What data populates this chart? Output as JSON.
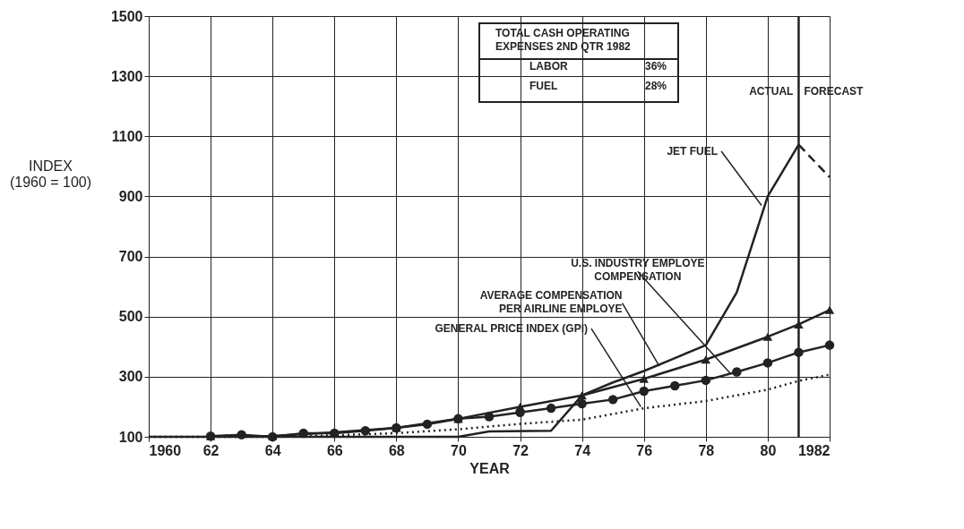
{
  "chart_data": {
    "type": "line",
    "xlabel": "YEAR",
    "ylabel": "INDEX\n(1960 = 100)",
    "xlim": [
      1960,
      1982
    ],
    "xticks": [
      1960,
      {
        "value": 1962,
        "label": "62"
      },
      {
        "value": 1964,
        "label": "64"
      },
      {
        "value": 1966,
        "label": "66"
      },
      {
        "value": 1968,
        "label": "68"
      },
      {
        "value": 1970,
        "label": "70"
      },
      {
        "value": 1972,
        "label": "72"
      },
      {
        "value": 1974,
        "label": "74"
      },
      {
        "value": 1976,
        "label": "76"
      },
      {
        "value": 1978,
        "label": "78"
      },
      {
        "value": 1980,
        "label": "80"
      },
      1982
    ],
    "ylim": [
      100,
      1500
    ],
    "yticks": [
      100,
      300,
      500,
      700,
      900,
      1100,
      1300,
      1500
    ],
    "grid": true,
    "series": [
      {
        "color": "#222222",
        "marker": "triangle",
        "line_style": "solid",
        "x": [
          1962,
          1964,
          1966,
          1968,
          1970,
          1972,
          1974,
          1976,
          1978,
          1980,
          1981,
          1982
        ],
        "values": [
          102,
          103,
          115,
          130,
          160,
          200,
          238,
          293,
          357,
          433,
          474,
          522
        ]
      },
      {
        "color": "#222222",
        "marker": "circle",
        "line_style": "solid",
        "x": [
          1962,
          1963,
          1964,
          1965,
          1966,
          1967,
          1968,
          1969,
          1970,
          1971,
          1972,
          1973,
          1974,
          1975,
          1976,
          1977,
          1978,
          1979,
          1980,
          1981,
          1982
        ],
        "values": [
          102,
          107,
          100,
          112,
          112,
          120,
          130,
          142,
          160,
          167,
          181,
          195,
          210,
          224,
          252,
          270,
          288,
          316,
          346,
          381,
          405
        ]
      },
      {
        "color": "#222222",
        "marker": "none",
        "line_style": "dotted",
        "x": [
          1960,
          1964,
          1966,
          1968,
          1970,
          1972,
          1974,
          1976,
          1978,
          1980,
          1981,
          1982
        ],
        "values": [
          100,
          100,
          105,
          112,
          125,
          143,
          157,
          195,
          219,
          257,
          286,
          307
        ]
      },
      {
        "color": "#222222",
        "marker": "none",
        "line_style": "solid",
        "x": [
          1960,
          1970,
          1971,
          1973,
          1974,
          1975,
          1976,
          1977,
          1978,
          1979,
          1980,
          1981
        ],
        "values": [
          100,
          100,
          118,
          120,
          238,
          281,
          319,
          362,
          405,
          581,
          900,
          1072
        ]
      },
      {
        "color": "#222222",
        "marker": "none",
        "line_style": "dashed",
        "x": [
          1981,
          1982
        ],
        "values": [
          1072,
          964
        ]
      }
    ],
    "ref_lines": [
      {
        "axis": "x",
        "value": 1981,
        "color": "#222222"
      }
    ],
    "annotations": [
      "TOTAL CASH OPERATING\nEXPENSES 2ND QTR 1982",
      "LABOR",
      "36%",
      "FUEL",
      "28%",
      {
        "text": "ACTUAL",
        "x": 1981,
        "y": 1200
      },
      {
        "text": "FORECAST",
        "x": 1981,
        "y": 1200
      },
      {
        "text": "JET FUEL",
        "x": 1979.8,
        "y": 870
      },
      {
        "text": "U.S. INDUSTRY EMPLOYE\nCOMPENSATION",
        "x": 1978.8,
        "y": 310
      },
      {
        "text": "AVERAGE COMPENSATION\nPER AIRLINE EMPLOYE",
        "x": 1976.5,
        "y": 335
      },
      {
        "text": "GENERAL PRICE INDEX (GPI)",
        "x": 1975.9,
        "y": 200
      }
    ]
  }
}
